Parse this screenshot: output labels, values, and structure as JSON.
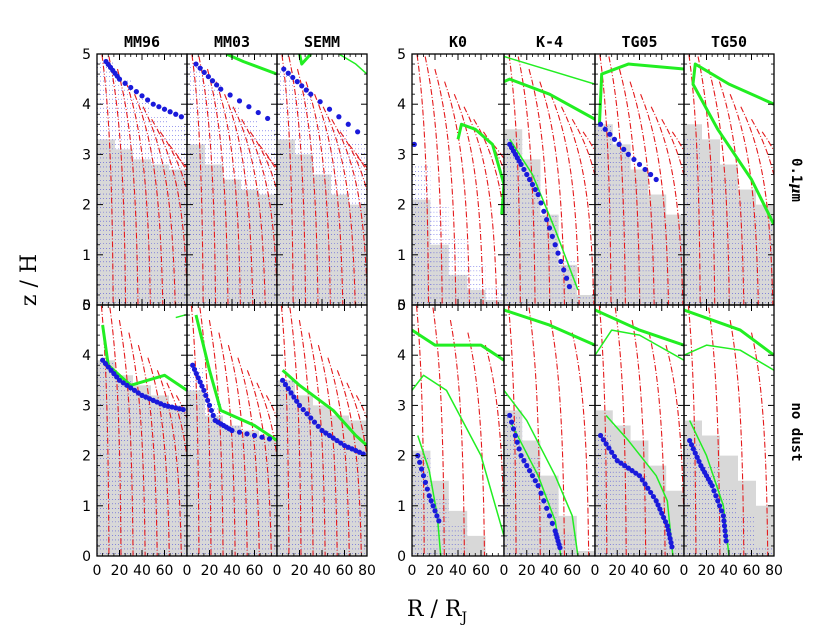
{
  "chart_data": {
    "type": "line",
    "description_level": "grid of contour panels",
    "column_titles": [
      "MM96",
      "MM03",
      "SEMM",
      "K0",
      "K-4",
      "TG05",
      "TG50"
    ],
    "row_labels": [
      "0.1μm",
      "no dust"
    ],
    "row_label_parts": {
      "dust": {
        "prefix": "0.1",
        "mu": "μ",
        "unit": "m"
      },
      "nodust": "no dust"
    },
    "xlabel": {
      "main": "R / R",
      "sub": "J"
    },
    "ylabel": "z / H",
    "xlim": [
      0,
      80
    ],
    "ylim": [
      0,
      5
    ],
    "xticks": [
      "0",
      "20",
      "40",
      "60",
      "80"
    ],
    "yticks": [
      "0",
      "1",
      "2",
      "3",
      "4",
      "5"
    ],
    "colors": {
      "red_contours": "#e41a1c",
      "green_contours": "#22ee22",
      "blue_points": "#1a1adb",
      "shaded_region": "#d8d8d8"
    },
    "panels": [
      {
        "row": 0,
        "col": 0,
        "gray_z": [
          3.3,
          3.1,
          2.9,
          2.8,
          2.7
        ],
        "blue_curve": [
          [
            8,
            4.85
          ],
          [
            20,
            4.5
          ],
          [
            50,
            4.0
          ],
          [
            80,
            3.7
          ]
        ],
        "blue_region_top": [
          4.85,
          4.5,
          4.1,
          3.8,
          3.6
        ],
        "green": [],
        "red_count": 10
      },
      {
        "row": 0,
        "col": 1,
        "gray_z": [
          3.2,
          2.8,
          2.5,
          2.3,
          2.2
        ],
        "blue_curve": [
          [
            8,
            4.8
          ],
          [
            30,
            4.3
          ],
          [
            80,
            3.6
          ]
        ],
        "blue_region_top": [
          4.8,
          4.4,
          4.0,
          3.7,
          3.5
        ],
        "green": [
          [
            [
              35,
              5.0
            ],
            [
              50,
              4.85
            ],
            [
              80,
              4.6
            ]
          ]
        ],
        "red_count": 10
      },
      {
        "row": 0,
        "col": 2,
        "gray_z": [
          3.3,
          3.0,
          2.6,
          2.2,
          2.0
        ],
        "blue_curve": [
          [
            6,
            4.7
          ],
          [
            30,
            4.2
          ],
          [
            80,
            3.3
          ]
        ],
        "blue_region_top": [
          4.7,
          4.2,
          3.8,
          3.5,
          3.2
        ],
        "green": [
          [
            [
              20,
              5.0
            ],
            [
              22,
              4.8
            ],
            [
              30,
              5.0
            ]
          ],
          [
            [
              55,
              5.0
            ],
            [
              70,
              4.8
            ],
            [
              80,
              4.6
            ]
          ]
        ],
        "red_count": 10
      },
      {
        "row": 0,
        "col": 3,
        "gray_z": [
          2.1,
          1.2,
          0.6,
          0.3,
          0.1
        ],
        "blue_curve": [
          [
            2,
            3.2
          ]
        ],
        "blue_region_top": [
          2.8,
          2.0,
          1.4,
          0.8,
          0.4
        ],
        "green": [
          [
            [
              40,
              3.3
            ],
            [
              43,
              3.6
            ],
            [
              55,
              3.5
            ],
            [
              70,
              3.2
            ],
            [
              80,
              2.4
            ],
            [
              78,
              1.8
            ]
          ]
        ],
        "red_count": 9
      },
      {
        "row": 0,
        "col": 4,
        "gray_z": [
          3.5,
          2.9,
          1.8,
          0.8,
          0.2
        ],
        "blue_curve": [
          [
            5,
            3.2
          ],
          [
            15,
            2.8
          ],
          [
            30,
            2.2
          ],
          [
            45,
            1.2
          ],
          [
            60,
            0.2
          ]
        ],
        "blue_region_top": [
          3.3,
          2.6,
          1.8,
          0.9,
          0.2
        ],
        "green": [
          [
            [
              0,
              4.45
            ],
            [
              5,
              4.5
            ],
            [
              40,
              4.2
            ],
            [
              80,
              3.7
            ]
          ],
          [
            [
              0,
              4.95
            ],
            [
              80,
              4.4
            ]
          ],
          [
            [
              5,
              3.3
            ],
            [
              25,
              2.6
            ],
            [
              45,
              1.5
            ],
            [
              65,
              0.3
            ]
          ]
        ],
        "red_count": 8
      },
      {
        "row": 0,
        "col": 5,
        "gray_z": [
          3.6,
          3.2,
          2.7,
          2.2,
          1.8
        ],
        "blue_curve": [
          [
            5,
            3.6
          ],
          [
            30,
            3.0
          ],
          [
            60,
            2.4
          ]
        ],
        "blue_region_top": [
          3.6,
          3.1,
          2.5,
          2.0,
          1.6
        ],
        "green": [
          [
            [
              4,
              3.6
            ],
            [
              6,
              4.6
            ],
            [
              30,
              4.8
            ],
            [
              80,
              4.7
            ]
          ]
        ],
        "red_count": 8
      },
      {
        "row": 0,
        "col": 6,
        "gray_z": [
          3.6,
          3.3,
          2.8,
          2.3,
          2.0
        ],
        "blue_curve": [],
        "blue_region_top": [
          3.3,
          2.9,
          2.5,
          2.1,
          1.8
        ],
        "green": [
          [
            [
              80,
              1.6
            ],
            [
              60,
              2.5
            ],
            [
              30,
              3.5
            ],
            [
              8,
              4.4
            ],
            [
              10,
              4.8
            ],
            [
              40,
              4.4
            ],
            [
              80,
              4.0
            ]
          ]
        ],
        "red_count": 8
      },
      {
        "row": 1,
        "col": 0,
        "gray_z": [
          3.9,
          3.6,
          3.4,
          3.2,
          3.0
        ],
        "blue_curve": [
          [
            5,
            3.9
          ],
          [
            20,
            3.5
          ],
          [
            40,
            3.2
          ],
          [
            60,
            3.0
          ],
          [
            80,
            2.9
          ]
        ],
        "blue_region_top": [
          3.9,
          3.5,
          3.2,
          3.0,
          2.9
        ],
        "green": [
          [
            [
              5,
              4.6
            ],
            [
              10,
              3.8
            ],
            [
              30,
              3.4
            ],
            [
              60,
              3.6
            ],
            [
              80,
              3.3
            ]
          ],
          [
            [
              70,
              4.75
            ],
            [
              78,
              4.8
            ],
            [
              80,
              4.8
            ]
          ]
        ],
        "red_count": 9
      },
      {
        "row": 1,
        "col": 1,
        "gray_z": [
          3.3,
          2.8,
          2.6,
          2.5,
          2.4
        ],
        "blue_curve": [
          [
            5,
            3.8
          ],
          [
            15,
            3.3
          ],
          [
            25,
            2.7
          ],
          [
            40,
            2.5
          ],
          [
            80,
            2.3
          ]
        ],
        "blue_region_top": [
          3.8,
          3.1,
          2.6,
          2.4,
          2.3
        ],
        "green": [
          [
            [
              8,
              4.8
            ],
            [
              20,
              3.7
            ],
            [
              30,
              2.9
            ],
            [
              60,
              2.6
            ],
            [
              80,
              2.3
            ]
          ]
        ],
        "red_count": 9
      },
      {
        "row": 1,
        "col": 2,
        "gray_z": [
          3.5,
          3.2,
          3.0,
          2.8,
          2.7
        ],
        "blue_curve": [
          [
            5,
            3.5
          ],
          [
            20,
            3.0
          ],
          [
            40,
            2.5
          ],
          [
            60,
            2.2
          ],
          [
            80,
            2.0
          ]
        ],
        "blue_region_top": [
          3.5,
          3.0,
          2.5,
          2.2,
          2.0
        ],
        "green": [
          [
            [
              5,
              3.7
            ],
            [
              20,
              3.4
            ],
            [
              50,
              2.9
            ],
            [
              70,
              2.4
            ],
            [
              80,
              2.2
            ]
          ]
        ],
        "red_count": 9
      },
      {
        "row": 1,
        "col": 3,
        "gray_z": [
          2.1,
          1.5,
          0.9,
          0.4,
          0.0
        ],
        "blue_curve": [
          [
            5,
            2.0
          ],
          [
            15,
            1.2
          ],
          [
            25,
            0.6
          ]
        ],
        "blue_region_top": [
          2.0,
          1.2,
          0.6,
          0.0,
          0.0
        ],
        "green": [
          [
            [
              0,
              4.5
            ],
            [
              20,
              4.2
            ],
            [
              60,
              4.2
            ],
            [
              80,
              3.9
            ]
          ],
          [
            [
              0,
              3.3
            ],
            [
              10,
              3.6
            ],
            [
              30,
              3.3
            ],
            [
              60,
              2.0
            ],
            [
              80,
              0.4
            ]
          ],
          [
            [
              5,
              2.4
            ],
            [
              15,
              1.7
            ],
            [
              22,
              0.8
            ],
            [
              25,
              0.0
            ]
          ]
        ],
        "red_count": 5
      },
      {
        "row": 1,
        "col": 4,
        "gray_z": [
          2.9,
          2.3,
          1.6,
          0.8,
          0.1
        ],
        "blue_curve": [
          [
            5,
            2.8
          ],
          [
            15,
            2.0
          ],
          [
            30,
            1.4
          ],
          [
            45,
            0.5
          ],
          [
            50,
            0.1
          ]
        ],
        "blue_region_top": [
          2.8,
          2.0,
          1.3,
          0.5,
          0.0
        ],
        "green": [
          [
            [
              0,
              4.9
            ],
            [
              40,
              4.6
            ],
            [
              80,
              4.2
            ]
          ],
          [
            [
              0,
              3.3
            ],
            [
              20,
              2.7
            ],
            [
              45,
              1.6
            ],
            [
              60,
              0.8
            ],
            [
              65,
              0.0
            ]
          ],
          [
            [
              5,
              2.7
            ],
            [
              30,
              1.6
            ],
            [
              45,
              0.7
            ],
            [
              50,
              0.0
            ]
          ]
        ],
        "red_count": 4
      },
      {
        "row": 1,
        "col": 5,
        "gray_z": [
          2.9,
          2.6,
          2.3,
          1.8,
          1.3
        ],
        "blue_curve": [
          [
            5,
            2.4
          ],
          [
            20,
            1.9
          ],
          [
            40,
            1.6
          ],
          [
            55,
            1.1
          ],
          [
            65,
            0.6
          ],
          [
            70,
            0.1
          ]
        ],
        "blue_region_top": [
          2.4,
          1.9,
          1.6,
          1.1,
          0.4
        ],
        "green": [
          [
            [
              0,
              4.9
            ],
            [
              40,
              4.5
            ],
            [
              80,
              4.2
            ]
          ],
          [
            [
              0,
              4.0
            ],
            [
              15,
              4.5
            ],
            [
              40,
              4.4
            ],
            [
              80,
              3.9
            ]
          ],
          [
            [
              10,
              2.8
            ],
            [
              30,
              2.3
            ],
            [
              55,
              1.6
            ],
            [
              65,
              1.1
            ],
            [
              70,
              0.0
            ]
          ]
        ],
        "red_count": 5
      },
      {
        "row": 1,
        "col": 6,
        "gray_z": [
          2.7,
          2.4,
          2.0,
          1.5,
          1.0
        ],
        "blue_curve": [
          [
            5,
            2.3
          ],
          [
            15,
            1.8
          ],
          [
            25,
            1.4
          ],
          [
            35,
            0.8
          ],
          [
            38,
            0.2
          ]
        ],
        "blue_region_top": [
          2.3,
          1.8,
          1.4,
          0.8,
          0.2
        ],
        "green": [
          [
            [
              0,
              4.9
            ],
            [
              50,
              4.5
            ],
            [
              80,
              4.0
            ]
          ],
          [
            [
              0,
              4.0
            ],
            [
              20,
              4.2
            ],
            [
              50,
              4.1
            ],
            [
              80,
              3.7
            ]
          ],
          [
            [
              5,
              2.7
            ],
            [
              20,
              2.0
            ],
            [
              35,
              1.0
            ],
            [
              40,
              0.0
            ]
          ]
        ],
        "red_count": 4
      }
    ]
  }
}
